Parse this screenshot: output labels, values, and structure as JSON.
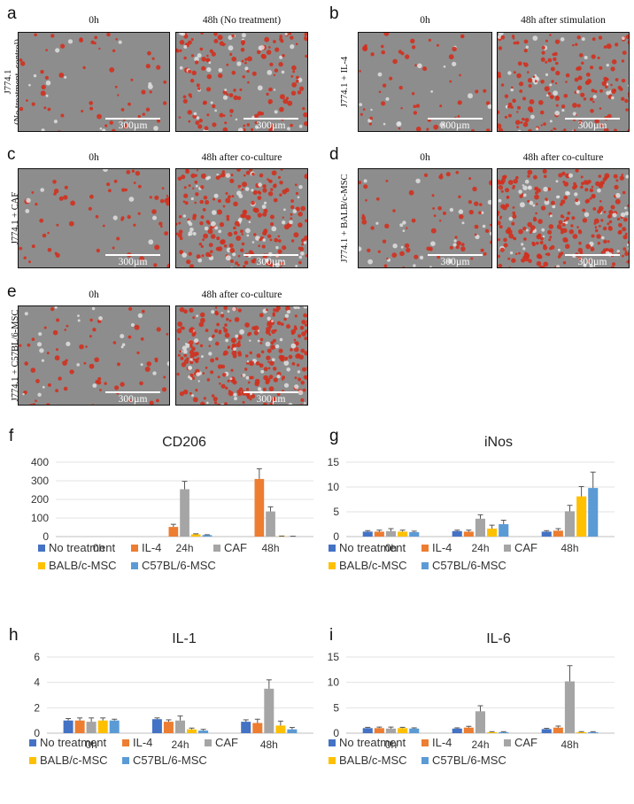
{
  "micrographs": [
    {
      "letter": "a",
      "row_label_line1": "J774.1",
      "row_label_line2": "(No treatment, control)",
      "images": [
        {
          "title": "0h",
          "scale": "300µm"
        },
        {
          "title": "48h (No treatment)",
          "scale": "300µm"
        }
      ]
    },
    {
      "letter": "b",
      "row_label_line1": "J774.1 + IL-4",
      "row_label_line2": "",
      "images": [
        {
          "title": "0h",
          "scale": "300µm"
        },
        {
          "title": "48h after stimulation",
          "scale": "300µm"
        }
      ]
    },
    {
      "letter": "c",
      "row_label_line1": "J774.1 + CAF",
      "row_label_line2": "",
      "images": [
        {
          "title": "0h",
          "scale": "300µm"
        },
        {
          "title": "48h after co-culture",
          "scale": "300µm"
        }
      ]
    },
    {
      "letter": "d",
      "row_label_line1": "J774.1 + BALB/c-MSC",
      "row_label_line2": "",
      "images": [
        {
          "title": "0h",
          "scale": "300µm"
        },
        {
          "title": "48h after co-culture",
          "scale": "300µm"
        }
      ]
    },
    {
      "letter": "e",
      "row_label_line1": "J774.1 + C57BL/6-MSC",
      "row_label_line2": "",
      "images": [
        {
          "title": "0h",
          "scale": "300µm"
        },
        {
          "title": "48h after co-culture",
          "scale": "300µm"
        }
      ]
    }
  ],
  "colors": {
    "No treatment": "#4472c4",
    "IL-4": "#ed7d31",
    "CAF": "#a5a5a5",
    "BALB/c-MSC": "#ffc000",
    "C57BL/6-MSC": "#5b9bd5",
    "cell_red": "#d2301e"
  },
  "chart_data": [
    {
      "letter": "f",
      "type": "bar",
      "title": "CD206",
      "categories": [
        "0h",
        "24h",
        "48h"
      ],
      "ylim": [
        0,
        400
      ],
      "yticks": [
        0,
        100,
        200,
        300,
        400
      ],
      "series": [
        {
          "name": "No treatment",
          "values": [
            0,
            0,
            0
          ],
          "errors": [
            0,
            0,
            0
          ]
        },
        {
          "name": "IL-4",
          "values": [
            0,
            52,
            310
          ],
          "errors": [
            0,
            14,
            55
          ]
        },
        {
          "name": "CAF",
          "values": [
            0,
            255,
            135
          ],
          "errors": [
            0,
            42,
            25
          ]
        },
        {
          "name": "BALB/c-MSC",
          "values": [
            0,
            12,
            2
          ],
          "errors": [
            0,
            3,
            1
          ]
        },
        {
          "name": "C57BL/6-MSC",
          "values": [
            0,
            8,
            1
          ],
          "errors": [
            0,
            2,
            1
          ]
        }
      ]
    },
    {
      "letter": "g",
      "type": "bar",
      "title": "iNos",
      "categories": [
        "0h",
        "24h",
        "48h"
      ],
      "ylim": [
        0,
        15
      ],
      "yticks": [
        0,
        5,
        10,
        15
      ],
      "series": [
        {
          "name": "No treatment",
          "values": [
            1.0,
            1.1,
            1.0
          ],
          "errors": [
            0.2,
            0.2,
            0.2
          ]
        },
        {
          "name": "IL-4",
          "values": [
            1.0,
            1.0,
            1.2
          ],
          "errors": [
            0.3,
            0.3,
            0.4
          ]
        },
        {
          "name": "CAF",
          "values": [
            1.1,
            3.6,
            5.1
          ],
          "errors": [
            0.5,
            0.8,
            1.2
          ]
        },
        {
          "name": "BALB/c-MSC",
          "values": [
            1.0,
            1.6,
            8.1
          ],
          "errors": [
            0.3,
            0.7,
            2.0
          ]
        },
        {
          "name": "C57BL/6-MSC",
          "values": [
            0.9,
            2.5,
            9.8
          ],
          "errors": [
            0.2,
            0.8,
            3.2
          ]
        }
      ]
    },
    {
      "letter": "h",
      "type": "bar",
      "title": "IL-1",
      "categories": [
        "0h",
        "24h",
        "48h"
      ],
      "ylim": [
        0,
        6
      ],
      "yticks": [
        0,
        2,
        4,
        6
      ],
      "series": [
        {
          "name": "No treatment",
          "values": [
            1.0,
            1.1,
            0.9
          ],
          "errors": [
            0.15,
            0.1,
            0.15
          ]
        },
        {
          "name": "IL-4",
          "values": [
            1.0,
            0.9,
            0.8
          ],
          "errors": [
            0.2,
            0.15,
            0.3
          ]
        },
        {
          "name": "CAF",
          "values": [
            0.9,
            1.0,
            3.5
          ],
          "errors": [
            0.3,
            0.35,
            0.7
          ]
        },
        {
          "name": "BALB/c-MSC",
          "values": [
            1.0,
            0.3,
            0.6
          ],
          "errors": [
            0.2,
            0.1,
            0.35
          ]
        },
        {
          "name": "C57BL/6-MSC",
          "values": [
            1.0,
            0.2,
            0.3
          ],
          "errors": [
            0.1,
            0.1,
            0.15
          ]
        }
      ]
    },
    {
      "letter": "i",
      "type": "bar",
      "title": "IL-6",
      "categories": [
        "0h",
        "24h",
        "48h"
      ],
      "ylim": [
        0,
        15
      ],
      "yticks": [
        0,
        5,
        10,
        15
      ],
      "series": [
        {
          "name": "No treatment",
          "values": [
            1.0,
            0.9,
            0.8
          ],
          "errors": [
            0.15,
            0.15,
            0.15
          ]
        },
        {
          "name": "IL-4",
          "values": [
            1.0,
            1.1,
            1.1
          ],
          "errors": [
            0.2,
            0.25,
            0.3
          ]
        },
        {
          "name": "CAF",
          "values": [
            0.9,
            4.3,
            10.2
          ],
          "errors": [
            0.3,
            1.1,
            3.1
          ]
        },
        {
          "name": "BALB/c-MSC",
          "values": [
            1.0,
            0.2,
            0.2
          ],
          "errors": [
            0.15,
            0.1,
            0.1
          ]
        },
        {
          "name": "C57BL/6-MSC",
          "values": [
            0.9,
            0.2,
            0.2
          ],
          "errors": [
            0.15,
            0.1,
            0.1
          ]
        }
      ]
    }
  ],
  "legend_row1": [
    "No treatment",
    "IL-4",
    "CAF"
  ],
  "legend_row2": [
    "BALB/c-MSC",
    "C57BL/6-MSC"
  ]
}
